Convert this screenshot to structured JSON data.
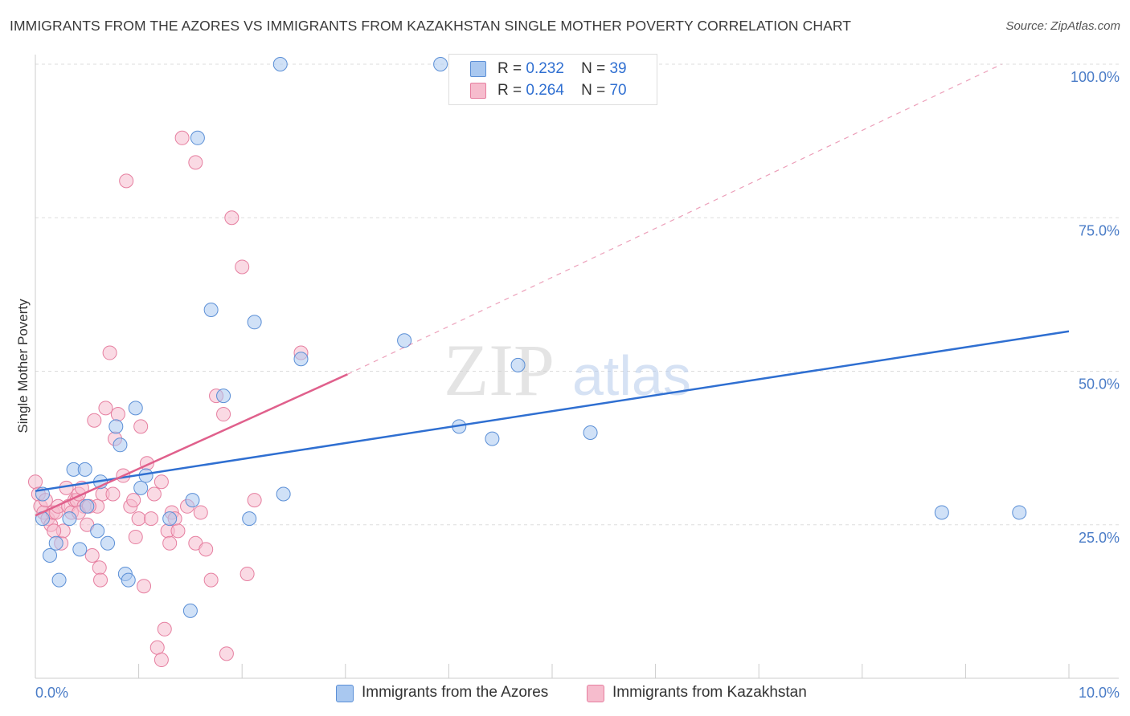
{
  "title": "IMMIGRANTS FROM THE AZORES VS IMMIGRANTS FROM KAZAKHSTAN SINGLE MOTHER POVERTY CORRELATION CHART",
  "source": "Source: ZipAtlas.com",
  "watermark": {
    "zip": "ZIP",
    "atlas": "atlas"
  },
  "legend": {
    "rows": [
      {
        "r_label": "R =",
        "r_value": "0.232",
        "n_label": "N =",
        "n_value": "39"
      },
      {
        "r_label": "R =",
        "r_value": "0.264",
        "n_label": "N =",
        "n_value": "70"
      }
    ]
  },
  "bottom_legend": [
    "Immigrants from the Azores",
    "Immigrants from Kazakhstan"
  ],
  "colors": {
    "azores_fill": "#a9c8f0",
    "azores_stroke": "#5b8fd6",
    "azores_line": "#2f6fd1",
    "kaz_fill": "#f6bccd",
    "kaz_stroke": "#e67fa0",
    "kaz_line": "#e0608c",
    "axis_text": "#4a7cc7",
    "grid": "#dddddd"
  },
  "chart_data": {
    "type": "scatter",
    "title": "IMMIGRANTS FROM THE AZORES VS IMMIGRANTS FROM KAZAKHSTAN SINGLE MOTHER POVERTY CORRELATION CHART",
    "xlabel": "",
    "ylabel": "Single Mother Poverty",
    "xlim": [
      0,
      10
    ],
    "ylim": [
      0,
      100
    ],
    "x_tick_labels": [
      "0.0%",
      "10.0%"
    ],
    "y_tick_labels": [
      "25.0%",
      "50.0%",
      "75.0%",
      "100.0%"
    ],
    "y_ticks": [
      25,
      50,
      75,
      100
    ],
    "grid": true,
    "legend_position": "top-center",
    "series": [
      {
        "name": "Immigrants from the Azores",
        "r": 0.232,
        "n": 39,
        "trend": {
          "x0": 0,
          "y0": 30.5,
          "x1": 10,
          "y1": 56.5,
          "style": "solid"
        },
        "points": [
          [
            0.07,
            26
          ],
          [
            0.07,
            30
          ],
          [
            0.14,
            20
          ],
          [
            0.23,
            16
          ],
          [
            0.2,
            22
          ],
          [
            0.33,
            26
          ],
          [
            0.37,
            34
          ],
          [
            0.43,
            21
          ],
          [
            0.48,
            34
          ],
          [
            0.5,
            28
          ],
          [
            0.6,
            24
          ],
          [
            0.63,
            32
          ],
          [
            0.7,
            22
          ],
          [
            0.78,
            41
          ],
          [
            0.82,
            38
          ],
          [
            0.87,
            17
          ],
          [
            0.9,
            16
          ],
          [
            0.97,
            44
          ],
          [
            1.02,
            31
          ],
          [
            1.07,
            33
          ],
          [
            1.3,
            26
          ],
          [
            1.52,
            29
          ],
          [
            1.5,
            11
          ],
          [
            1.57,
            88
          ],
          [
            1.7,
            60
          ],
          [
            1.82,
            46
          ],
          [
            2.07,
            26
          ],
          [
            2.12,
            58
          ],
          [
            2.37,
            100
          ],
          [
            2.4,
            30
          ],
          [
            2.57,
            52
          ],
          [
            3.57,
            55
          ],
          [
            3.92,
            100
          ],
          [
            4.1,
            41
          ],
          [
            4.42,
            39
          ],
          [
            4.67,
            51
          ],
          [
            5.37,
            40
          ],
          [
            8.77,
            27
          ],
          [
            9.52,
            27
          ]
        ]
      },
      {
        "name": "Immigrants from Kazakhstan",
        "r": 0.264,
        "n": 70,
        "trend": {
          "x0": 0,
          "y0": 26.5,
          "x1": 3.02,
          "y1": 49.5,
          "style": "solid",
          "dash_to": {
            "x": 9.35,
            "y": 100
          }
        },
        "points": [
          [
            0.0,
            32
          ],
          [
            0.03,
            30
          ],
          [
            0.05,
            28
          ],
          [
            0.08,
            27
          ],
          [
            0.1,
            29
          ],
          [
            0.12,
            26
          ],
          [
            0.15,
            25
          ],
          [
            0.17,
            27
          ],
          [
            0.2,
            27
          ],
          [
            0.22,
            28
          ],
          [
            0.25,
            22
          ],
          [
            0.27,
            24
          ],
          [
            0.3,
            31
          ],
          [
            0.32,
            28
          ],
          [
            0.35,
            27
          ],
          [
            0.38,
            29
          ],
          [
            0.4,
            29
          ],
          [
            0.42,
            30
          ],
          [
            0.45,
            31
          ],
          [
            0.47,
            28
          ],
          [
            0.5,
            25
          ],
          [
            0.55,
            20
          ],
          [
            0.57,
            42
          ],
          [
            0.6,
            28
          ],
          [
            0.62,
            18
          ],
          [
            0.63,
            16
          ],
          [
            0.68,
            44
          ],
          [
            0.72,
            53
          ],
          [
            0.77,
            39
          ],
          [
            0.8,
            43
          ],
          [
            0.85,
            33
          ],
          [
            0.88,
            81
          ],
          [
            0.92,
            28
          ],
          [
            0.97,
            23
          ],
          [
            1.0,
            26
          ],
          [
            1.02,
            41
          ],
          [
            1.05,
            15
          ],
          [
            1.08,
            35
          ],
          [
            1.12,
            26
          ],
          [
            1.18,
            5
          ],
          [
            1.22,
            3
          ],
          [
            1.22,
            32
          ],
          [
            1.25,
            8
          ],
          [
            1.28,
            24
          ],
          [
            1.3,
            22
          ],
          [
            1.32,
            27
          ],
          [
            1.35,
            26
          ],
          [
            1.42,
            88
          ],
          [
            1.47,
            28
          ],
          [
            1.55,
            84
          ],
          [
            1.55,
            22
          ],
          [
            1.6,
            27
          ],
          [
            1.65,
            21
          ],
          [
            1.7,
            16
          ],
          [
            1.75,
            46
          ],
          [
            1.82,
            43
          ],
          [
            1.85,
            4
          ],
          [
            1.9,
            75
          ],
          [
            2.0,
            67
          ],
          [
            2.05,
            17
          ],
          [
            2.12,
            29
          ],
          [
            2.57,
            53
          ],
          [
            0.18,
            24
          ],
          [
            0.42,
            27
          ],
          [
            0.52,
            28
          ],
          [
            0.65,
            30
          ],
          [
            0.75,
            30
          ],
          [
            0.95,
            29
          ],
          [
            1.15,
            30
          ],
          [
            1.38,
            24
          ]
        ]
      }
    ]
  }
}
